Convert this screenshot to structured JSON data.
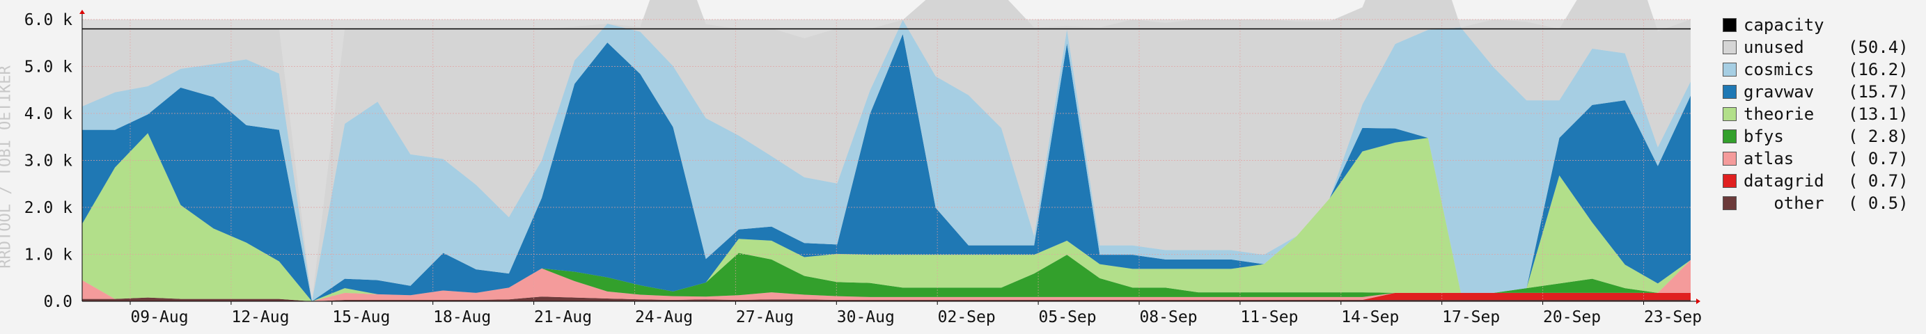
{
  "chart_data": {
    "type": "area",
    "ylabel": "RRDTOOL / TOBI OETIKER",
    "ylim": [
      0,
      6000
    ],
    "grid": true,
    "legend_position": "right",
    "y_ticks": [
      {
        "value": 0,
        "label": "0.0"
      },
      {
        "value": 1000,
        "label": "1.0 k"
      },
      {
        "value": 2000,
        "label": "2.0 k"
      },
      {
        "value": 3000,
        "label": "3.0 k"
      },
      {
        "value": 4000,
        "label": "4.0 k"
      },
      {
        "value": 5000,
        "label": "5.0 k"
      },
      {
        "value": 6000,
        "label": "6.0 k"
      }
    ],
    "x_ticks": [
      "09-Aug",
      "12-Aug",
      "15-Aug",
      "18-Aug",
      "21-Aug",
      "24-Aug",
      "27-Aug",
      "30-Aug",
      "02-Sep",
      "05-Sep",
      "08-Sep",
      "11-Sep",
      "14-Sep",
      "17-Sep",
      "20-Sep",
      "23-Sep"
    ],
    "x": [
      "06-Aug",
      "07-Aug",
      "08-Aug",
      "09-Aug",
      "10-Aug",
      "11-Aug",
      "12-Aug",
      "13-Aug",
      "14-Aug",
      "15-Aug",
      "16-Aug",
      "17-Aug",
      "18-Aug",
      "19-Aug",
      "20-Aug",
      "21-Aug",
      "22-Aug",
      "23-Aug",
      "24-Aug",
      "25-Aug",
      "26-Aug",
      "27-Aug",
      "28-Aug",
      "29-Aug",
      "30-Aug",
      "31-Aug",
      "01-Sep",
      "02-Sep",
      "03-Sep",
      "04-Sep",
      "05-Sep",
      "06-Sep",
      "07-Sep",
      "08-Sep",
      "09-Sep",
      "10-Sep",
      "11-Sep",
      "12-Sep",
      "13-Sep",
      "14-Sep",
      "15-Sep",
      "16-Sep",
      "17-Sep",
      "18-Sep",
      "19-Sep",
      "20-Sep",
      "21-Sep",
      "22-Sep",
      "23-Sep",
      "24-Sep"
    ],
    "capacity": 5800,
    "series": [
      {
        "name": "other",
        "color": "#6b3a3a",
        "legend_value": "( 0.5)",
        "values": [
          50,
          50,
          80,
          50,
          50,
          50,
          50,
          0,
          30,
          30,
          30,
          30,
          30,
          40,
          100,
          80,
          60,
          40,
          30,
          40,
          30,
          40,
          40,
          30,
          30,
          30,
          30,
          30,
          30,
          30,
          30,
          30,
          30,
          30,
          30,
          30,
          30,
          30,
          30,
          30,
          30,
          30,
          30,
          30,
          30,
          30,
          30,
          30,
          30,
          30
        ]
      },
      {
        "name": "datagrid",
        "color": "#e02020",
        "legend_value": "( 0.7)",
        "values": [
          0,
          0,
          0,
          0,
          0,
          0,
          0,
          0,
          0,
          0,
          0,
          0,
          0,
          0,
          0,
          0,
          0,
          0,
          0,
          0,
          0,
          0,
          0,
          0,
          0,
          0,
          0,
          0,
          0,
          0,
          0,
          0,
          0,
          0,
          0,
          0,
          0,
          0,
          0,
          0,
          150,
          150,
          150,
          150,
          150,
          150,
          150,
          150,
          150,
          150
        ]
      },
      {
        "name": "atlas",
        "color": "#f49b9b",
        "legend_value": "( 0.7)",
        "values": [
          400,
          0,
          0,
          0,
          0,
          0,
          0,
          0,
          150,
          120,
          100,
          200,
          150,
          250,
          600,
          350,
          150,
          100,
          80,
          60,
          100,
          150,
          100,
          80,
          60,
          60,
          60,
          60,
          60,
          60,
          60,
          60,
          60,
          60,
          60,
          60,
          60,
          60,
          60,
          60,
          0,
          0,
          0,
          0,
          0,
          0,
          0,
          0,
          0,
          700
        ]
      },
      {
        "name": "bfys",
        "color": "#33a02c",
        "legend_value": "( 2.8)",
        "values": [
          0,
          0,
          0,
          0,
          0,
          0,
          0,
          0,
          0,
          0,
          0,
          0,
          0,
          0,
          0,
          200,
          300,
          200,
          100,
          300,
          900,
          700,
          400,
          300,
          300,
          200,
          200,
          200,
          200,
          500,
          900,
          400,
          200,
          200,
          100,
          100,
          100,
          100,
          100,
          100,
          0,
          0,
          0,
          0,
          100,
          200,
          300,
          100,
          0,
          0
        ]
      },
      {
        "name": "theorie",
        "color": "#b2df8a",
        "legend_value": "(13.1)",
        "values": [
          1200,
          2800,
          3500,
          2000,
          1500,
          1200,
          800,
          0,
          100,
          0,
          0,
          0,
          0,
          0,
          0,
          0,
          0,
          0,
          0,
          0,
          300,
          400,
          400,
          600,
          600,
          700,
          700,
          700,
          700,
          400,
          300,
          300,
          400,
          400,
          500,
          500,
          600,
          1200,
          2000,
          3000,
          3200,
          3300,
          0,
          0,
          0,
          2300,
          1200,
          500,
          200,
          0
        ]
      },
      {
        "name": "gravwav",
        "color": "#1f78b4",
        "legend_value": "(15.7)",
        "values": [
          2000,
          800,
          400,
          2500,
          2800,
          2500,
          2800,
          0,
          200,
          300,
          200,
          800,
          500,
          300,
          1500,
          4000,
          5000,
          4500,
          3500,
          500,
          200,
          300,
          300,
          200,
          3000,
          4700,
          1000,
          200,
          200,
          200,
          4200,
          200,
          300,
          200,
          200,
          200,
          0,
          0,
          0,
          500,
          300,
          0,
          0,
          0,
          0,
          800,
          2500,
          3500,
          2500,
          3500
        ]
      },
      {
        "name": "cosmics",
        "color": "#a6cee3",
        "legend_value": "(16.2)",
        "values": [
          500,
          800,
          600,
          400,
          700,
          1400,
          1200,
          0,
          3300,
          3800,
          2800,
          2000,
          1800,
          1200,
          800,
          500,
          400,
          900,
          1300,
          3000,
          2000,
          1500,
          1400,
          1300,
          500,
          300,
          2800,
          3200,
          2500,
          200,
          300,
          200,
          200,
          200,
          200,
          200,
          200,
          0,
          0,
          500,
          1800,
          2300,
          5650,
          4800,
          4000,
          800,
          1200,
          1000,
          400,
          300
        ]
      },
      {
        "name": "unused",
        "color": "#d5d5d5",
        "legend_value": "(50.4)",
        "values": [
          1650,
          1350,
          1220,
          850,
          750,
          650,
          950,
          0,
          2020,
          1550,
          2670,
          2770,
          3320,
          4010,
          2800,
          720,
          0,
          100,
          2790,
          2000,
          2270,
          2720,
          2960,
          3300,
          1310,
          0,
          1810,
          2410,
          2880,
          4440,
          70,
          4640,
          4810,
          4840,
          4910,
          4910,
          5010,
          4570,
          3770,
          2070,
          2520,
          2170,
          0,
          1020,
          1670,
          1520,
          1570,
          2570,
          2470,
          1320
        ]
      }
    ]
  }
}
